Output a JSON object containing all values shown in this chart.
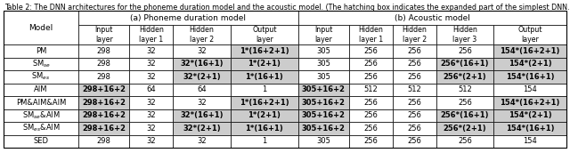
{
  "title": "Table 2: The DNN architectures for the phoneme duration model and the acoustic model. (The hatching box indicates the expanded part of the simplest DNN.)",
  "section_a": "(a) Phoneme duration model",
  "section_b": "(b) Acoustic model",
  "col_headers_a": [
    "Input\nlayer",
    "Hidden\nlayer 1",
    "Hidden\nlayer 2",
    "Output\nlayer"
  ],
  "col_headers_b": [
    "Input\nlayer",
    "Hidden\nlayer 1",
    "Hidden\nlayer 2",
    "Hidden\nlayer 3",
    "Output\nlayer"
  ],
  "row_labels_prefix": [
    "PM",
    "SM",
    "SM",
    "AIM",
    "PM&AIM",
    "SM",
    "SM",
    "SED"
  ],
  "row_labels_sub": [
    "",
    "se",
    "es",
    "",
    "",
    "se",
    "es",
    ""
  ],
  "row_labels_suffix": [
    "",
    "",
    "",
    "",
    "",
    "&AIM",
    "&AIM",
    ""
  ],
  "row_labels_pre_suffix": [
    "",
    "",
    "",
    "",
    "&AIM",
    "",
    "",
    ""
  ],
  "data_a": [
    [
      "298",
      "32",
      "32",
      "1*(16+2+1)"
    ],
    [
      "298",
      "32",
      "32*(16+1)",
      "1*(2+1)"
    ],
    [
      "298",
      "32",
      "32*(2+1)",
      "1*(16+1)"
    ],
    [
      "298+16+2",
      "64",
      "64",
      "1"
    ],
    [
      "298+16+2",
      "32",
      "32",
      "1*(16+2+1)"
    ],
    [
      "298+16+2",
      "32",
      "32*(16+1)",
      "1*(2+1)"
    ],
    [
      "298+16+2",
      "32",
      "32*(2+1)",
      "1*(16+1)"
    ],
    [
      "298",
      "32",
      "32",
      "1"
    ]
  ],
  "data_b": [
    [
      "305",
      "256",
      "256",
      "256",
      "154*(16+2+1)"
    ],
    [
      "305",
      "256",
      "256",
      "256*(16+1)",
      "154*(2+1)"
    ],
    [
      "305",
      "256",
      "256",
      "256*(2+1)",
      "154*(16+1)"
    ],
    [
      "305+16+2",
      "512",
      "512",
      "512",
      "154"
    ],
    [
      "305+16+2",
      "256",
      "256",
      "256",
      "154*(16+2+1)"
    ],
    [
      "305+16+2",
      "256",
      "256",
      "256*(16+1)",
      "154*(2+1)"
    ],
    [
      "305+16+2",
      "256",
      "256",
      "256*(2+1)",
      "154*(16+1)"
    ],
    [
      "305",
      "256",
      "256",
      "256",
      "154"
    ]
  ],
  "bold_a": [
    [
      false,
      false,
      false,
      true
    ],
    [
      false,
      false,
      true,
      true
    ],
    [
      false,
      false,
      true,
      true
    ],
    [
      true,
      false,
      false,
      false
    ],
    [
      true,
      false,
      false,
      true
    ],
    [
      true,
      false,
      true,
      true
    ],
    [
      true,
      false,
      true,
      true
    ],
    [
      false,
      false,
      false,
      false
    ]
  ],
  "bold_b": [
    [
      false,
      false,
      false,
      false,
      true
    ],
    [
      false,
      false,
      false,
      true,
      true
    ],
    [
      false,
      false,
      false,
      true,
      true
    ],
    [
      true,
      false,
      false,
      false,
      false
    ],
    [
      true,
      false,
      false,
      false,
      true
    ],
    [
      true,
      false,
      false,
      true,
      true
    ],
    [
      true,
      false,
      false,
      true,
      true
    ],
    [
      false,
      false,
      false,
      false,
      false
    ]
  ],
  "hatch_a": [
    [
      false,
      false,
      false,
      true
    ],
    [
      false,
      false,
      true,
      true
    ],
    [
      false,
      false,
      true,
      true
    ],
    [
      true,
      false,
      false,
      false
    ],
    [
      true,
      false,
      false,
      true
    ],
    [
      true,
      false,
      true,
      true
    ],
    [
      true,
      false,
      true,
      true
    ],
    [
      false,
      false,
      false,
      false
    ]
  ],
  "hatch_b": [
    [
      false,
      false,
      false,
      false,
      true
    ],
    [
      false,
      false,
      false,
      true,
      true
    ],
    [
      false,
      false,
      false,
      true,
      true
    ],
    [
      true,
      false,
      false,
      false,
      false
    ],
    [
      true,
      false,
      false,
      false,
      true
    ],
    [
      true,
      false,
      false,
      true,
      true
    ],
    [
      true,
      false,
      false,
      true,
      true
    ],
    [
      false,
      false,
      false,
      false,
      false
    ]
  ],
  "bg_color": "#ffffff",
  "hatch_color": "#cccccc",
  "font_size": 6.0,
  "header_font_size": 6.5,
  "title_font_size": 5.8
}
